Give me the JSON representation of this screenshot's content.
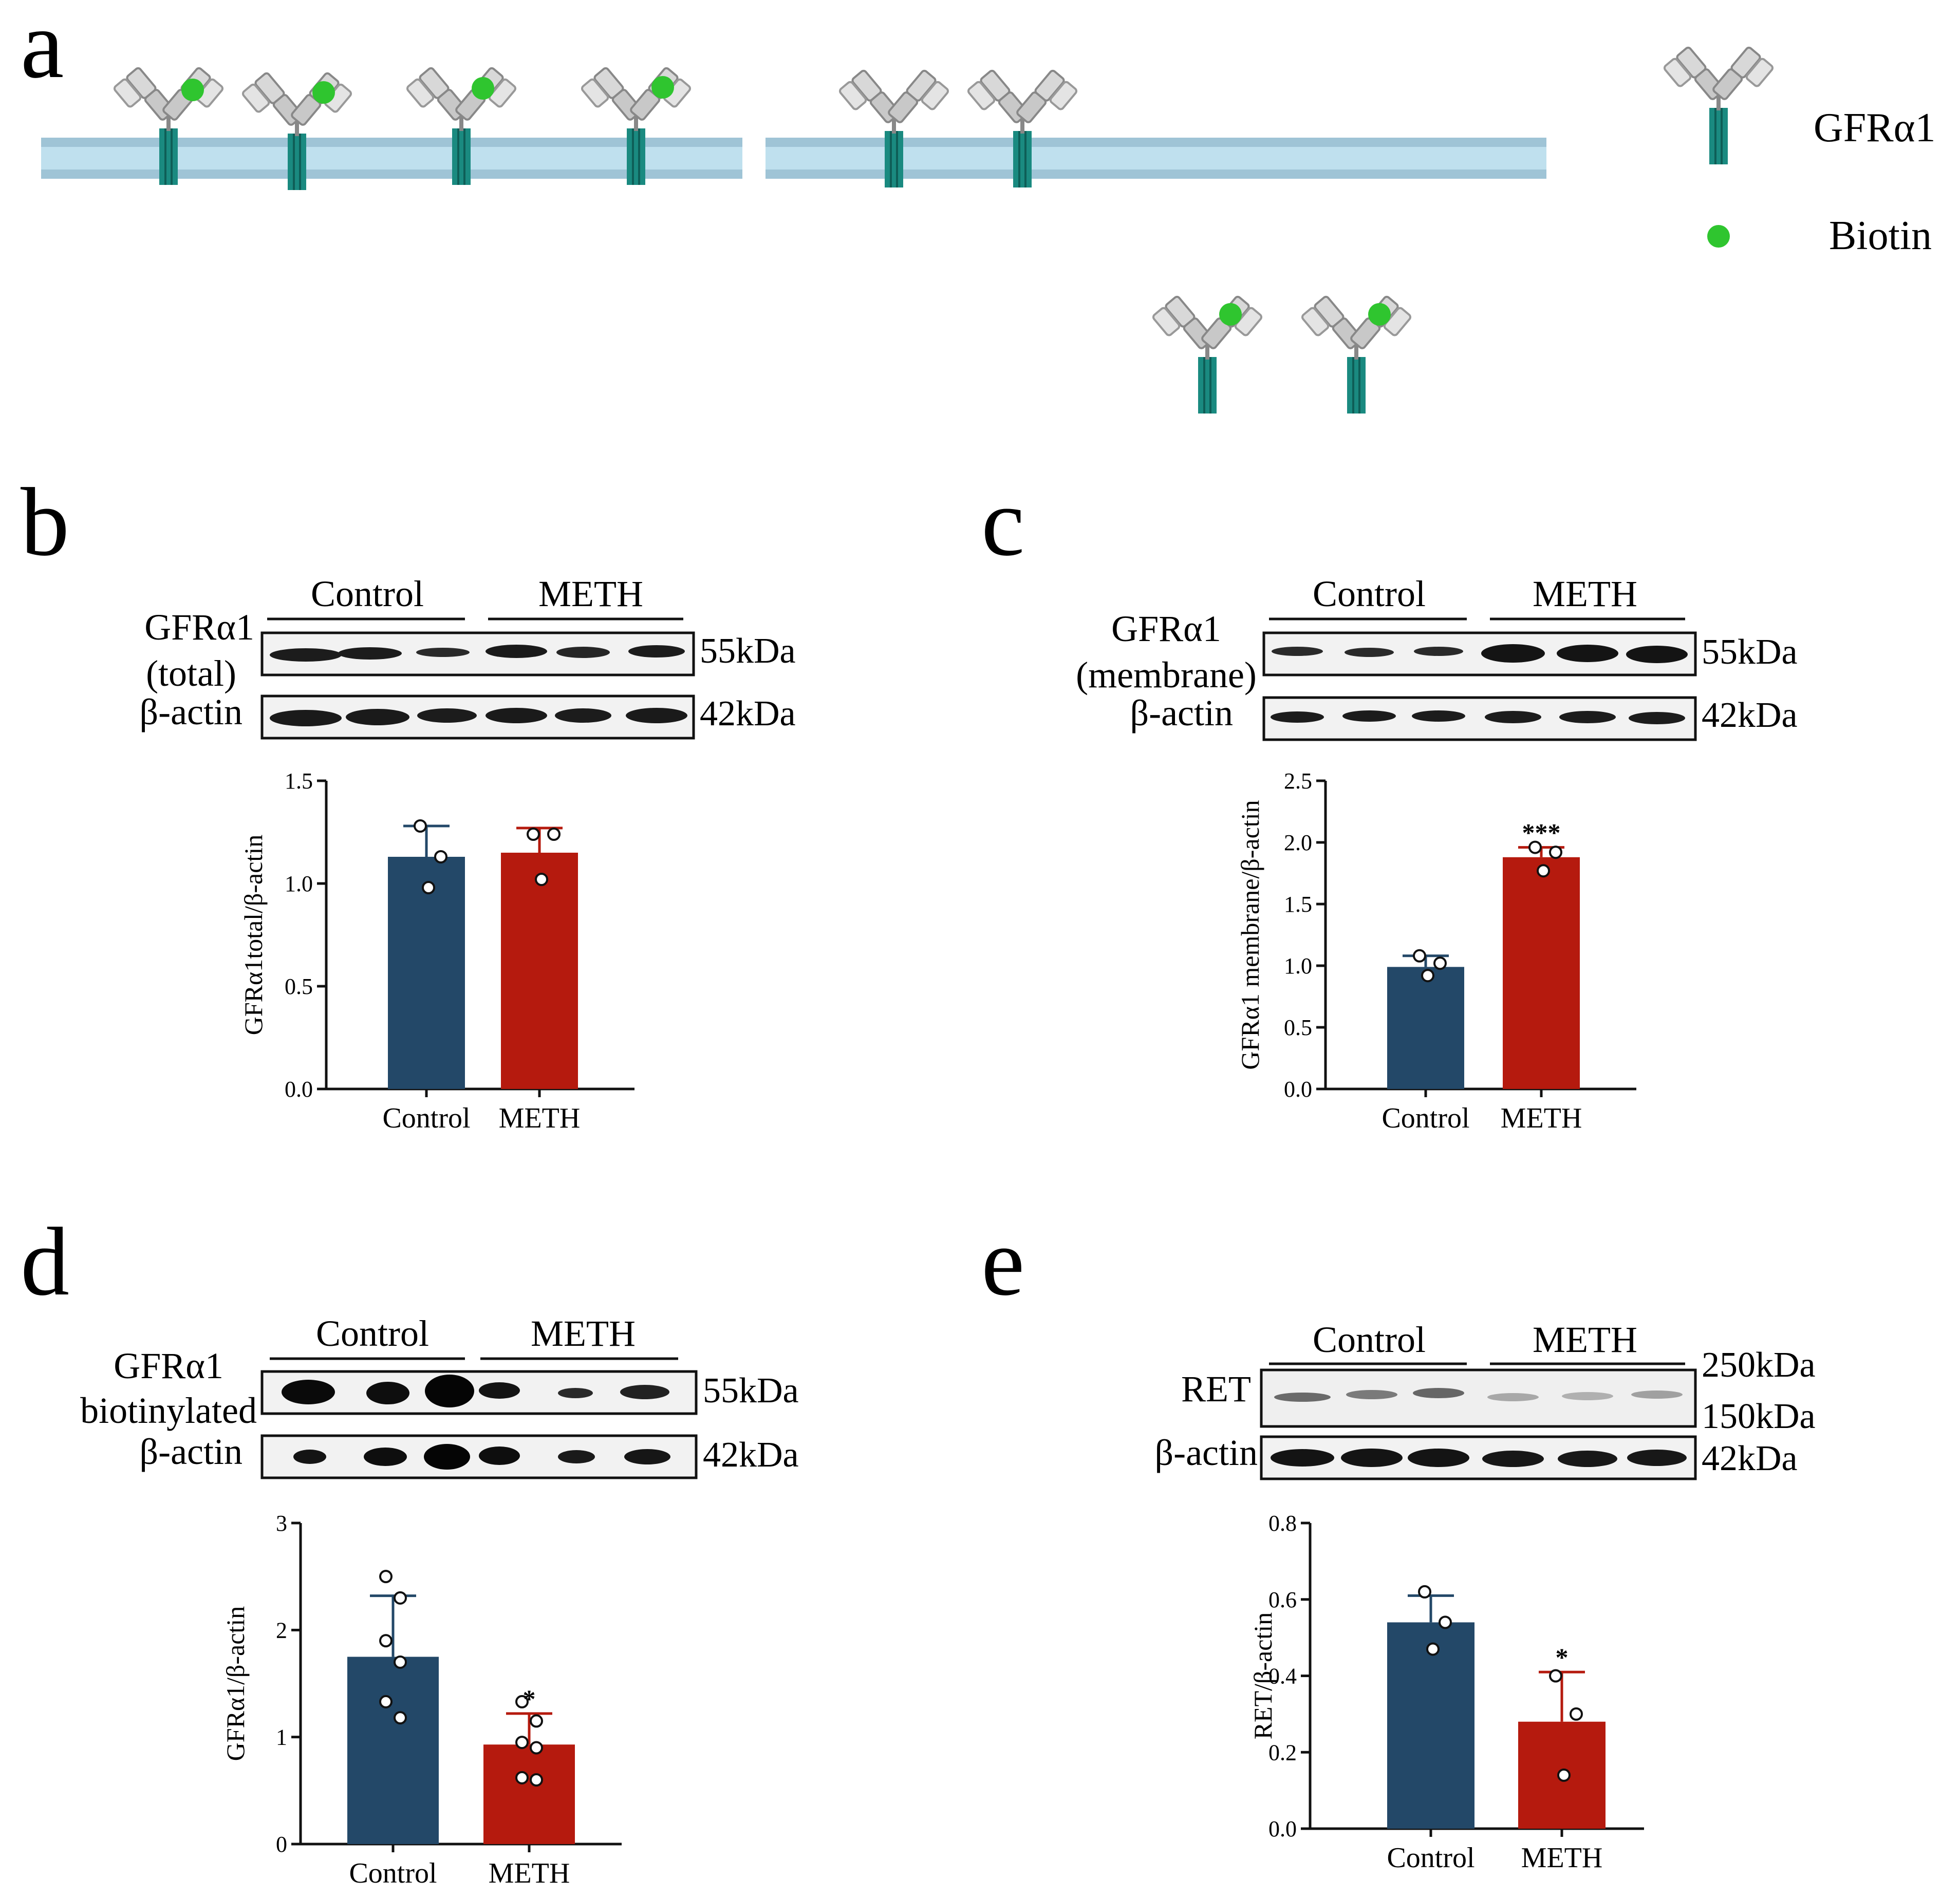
{
  "panels": {
    "a": {
      "letter": "a",
      "legend": {
        "receptor_label": "GFRα1",
        "biotin_label": "Biotin"
      }
    },
    "b": {
      "letter": "b",
      "blot": {
        "group1": "Control",
        "group2": "METH",
        "row1_label": "GFRα1\n(total)",
        "row2_label": "β-actin",
        "mw1": "55kDa",
        "mw2": "42kDa"
      }
    },
    "c": {
      "letter": "c",
      "blot": {
        "group1": "Control",
        "group2": "METH",
        "row1_label": "GFRα1\n(membrane)",
        "row2_label": "β-actin",
        "mw1": "55kDa",
        "mw2": "42kDa"
      }
    },
    "d": {
      "letter": "d",
      "blot": {
        "group1": "Control",
        "group2": "METH",
        "row1_label": "GFRα1\nbiotinylated",
        "row2_label": "β-actin",
        "mw1": "55kDa",
        "mw2": "42kDa"
      }
    },
    "e": {
      "letter": "e",
      "blot": {
        "group1": "Control",
        "group2": "METH",
        "row1_label": "RET",
        "row2_label": "β-actin",
        "mw1": "250kDa",
        "mw1b": "150kDa",
        "mw2": "42kDa"
      }
    }
  },
  "colors": {
    "control": "#234868",
    "meth": "#B51A0E",
    "receptor": "#1a8a80",
    "biotin": "#2fc52f",
    "membrane": "#bfe0ee"
  },
  "chart_data": [
    {
      "panel": "b",
      "type": "bar",
      "categories": [
        "Control",
        "METH"
      ],
      "values": [
        1.13,
        1.15
      ],
      "errors": [
        0.15,
        0.12
      ],
      "points": [
        [
          1.28,
          1.13,
          0.98
        ],
        [
          1.24,
          1.24,
          1.02
        ]
      ],
      "significance": [
        "",
        ""
      ],
      "ylabel": "GFRα1total/β-actin",
      "ylim": [
        0,
        1.5
      ],
      "yticks": [
        "0.0",
        "0.5",
        "1.0",
        "1.5"
      ]
    },
    {
      "panel": "c",
      "type": "bar",
      "categories": [
        "Control",
        "METH"
      ],
      "values": [
        0.99,
        1.88
      ],
      "errors": [
        0.09,
        0.08
      ],
      "points": [
        [
          1.08,
          1.02,
          0.92
        ],
        [
          1.96,
          1.92,
          1.77
        ]
      ],
      "significance": [
        "",
        "***"
      ],
      "ylabel": "GFRα1 membrane/β-actin",
      "ylim": [
        0,
        2.5
      ],
      "yticks": [
        "0.0",
        "0.5",
        "1.0",
        "1.5",
        "2.0",
        "2.5"
      ]
    },
    {
      "panel": "d",
      "type": "bar",
      "categories": [
        "Control",
        "METH"
      ],
      "values": [
        1.75,
        0.93
      ],
      "errors": [
        0.57,
        0.29
      ],
      "points": [
        [
          2.5,
          2.3,
          1.9,
          1.7,
          1.33,
          1.18
        ],
        [
          1.33,
          1.15,
          0.95,
          0.9,
          0.62,
          0.6
        ]
      ],
      "significance": [
        "",
        "*"
      ],
      "ylabel": "GFRα1/β-actin",
      "ylim": [
        0,
        3
      ],
      "yticks": [
        "0",
        "1",
        "2",
        "3"
      ]
    },
    {
      "panel": "e",
      "type": "bar",
      "categories": [
        "Control",
        "METH"
      ],
      "values": [
        0.54,
        0.28
      ],
      "errors": [
        0.07,
        0.13
      ],
      "points": [
        [
          0.62,
          0.54,
          0.47
        ],
        [
          0.4,
          0.3,
          0.14
        ]
      ],
      "significance": [
        "",
        "*"
      ],
      "ylabel": "RET/β-actin",
      "ylim": [
        0,
        0.8
      ],
      "yticks": [
        "0.0",
        "0.2",
        "0.4",
        "0.6",
        "0.8"
      ]
    }
  ]
}
